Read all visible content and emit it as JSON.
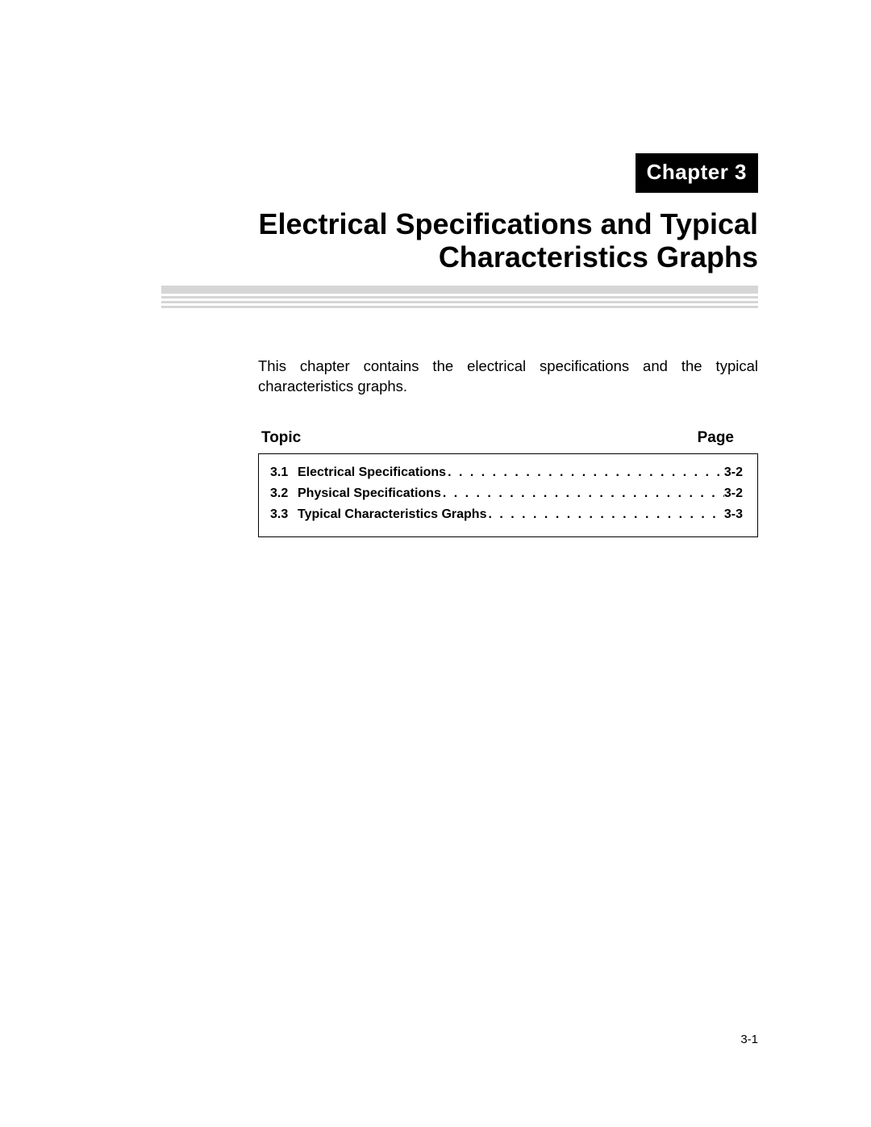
{
  "chapter_label": "Chapter 3",
  "title_line1": "Electrical Specifications and Typical",
  "title_line2": "Characteristics Graphs",
  "intro_text": "This chapter contains the electrical specifications and the typical characteristics graphs.",
  "toc": {
    "header_topic": "Topic",
    "header_page": "Page",
    "rows": [
      {
        "num": "3.1",
        "title": "Electrical Specifications",
        "page": "3-2"
      },
      {
        "num": "3.2",
        "title": "Physical Specifications",
        "page": "3-2"
      },
      {
        "num": "3.3",
        "title": "Typical Characteristics Graphs",
        "page": "3-3"
      }
    ]
  },
  "page_number": "3-1",
  "colors": {
    "chapter_bg": "#000000",
    "chapter_fg": "#ffffff",
    "rule": "#d6d6d6",
    "text": "#000000",
    "page_bg": "#ffffff"
  },
  "typography": {
    "title_fontsize_pt": 27,
    "chapter_fontsize_pt": 20,
    "body_fontsize_pt": 14,
    "toc_fontsize_pt": 12,
    "font_family": "Helvetica"
  }
}
